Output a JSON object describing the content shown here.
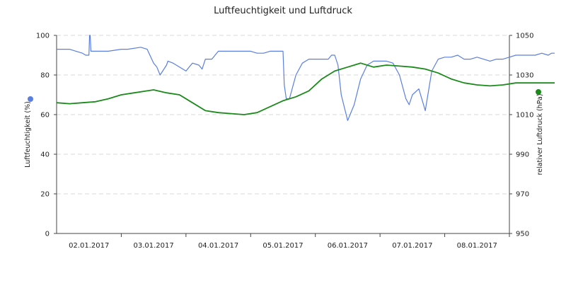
{
  "chart_data": {
    "type": "line",
    "title": "Luftfeuchtigkeit und Luftdruck",
    "y_left": {
      "label": "Luftfeuchtigkeit (%)",
      "lim": [
        0,
        100
      ],
      "ticks": [
        "0",
        "20",
        "40",
        "60",
        "80",
        "100"
      ]
    },
    "y_right": {
      "label": "relativer Luftdruck (hPa)",
      "lim": [
        950,
        1050
      ],
      "ticks": [
        "950",
        "970",
        "990",
        "1010",
        "1030",
        "1050"
      ]
    },
    "x_range": [
      "01.01.2017 00:00",
      "08.01.2017 23:59"
    ],
    "x_ticks": [
      "02.01.2017",
      "03.01.2017",
      "04.01.2017",
      "05.01.2017",
      "06.01.2017",
      "07.01.2017",
      "08.01.2017"
    ],
    "grid": "horizontal dashed",
    "colors": {
      "humidity": "#5b7fe0",
      "pressure": "#1a8a1a",
      "grid": "#d8d8d8",
      "axis": "#444444"
    },
    "series": [
      {
        "axis": "left",
        "x_days": [
          0,
          0.2,
          0.3,
          0.4,
          0.45,
          0.5,
          0.51,
          0.52,
          0.53,
          0.55,
          0.6,
          0.8,
          1.0,
          1.1,
          1.3,
          1.4,
          1.5,
          1.55,
          1.6,
          1.7,
          1.72,
          1.8,
          1.9,
          2.0,
          2.05,
          2.1,
          2.2,
          2.25,
          2.3,
          2.4,
          2.5,
          2.6,
          2.7,
          2.8,
          2.9,
          3.0,
          3.1,
          3.2,
          3.3,
          3.4,
          3.5,
          3.52,
          3.55,
          3.6,
          3.7,
          3.8,
          3.9,
          4.0,
          4.1,
          4.2,
          4.25,
          4.3,
          4.35,
          4.4,
          4.5,
          4.6,
          4.7,
          4.8,
          4.9,
          5.0,
          5.1,
          5.2,
          5.3,
          5.4,
          5.45,
          5.5,
          5.6,
          5.7,
          5.8,
          5.9,
          6.0,
          6.1,
          6.2,
          6.3,
          6.4,
          6.5,
          6.6,
          6.7,
          6.8,
          6.9,
          7.0,
          7.1,
          7.2,
          7.3,
          7.4,
          7.5,
          7.6,
          7.65,
          7.7
        ],
        "values": [
          93,
          93,
          92,
          91,
          90,
          90,
          100,
          100,
          92,
          92,
          92,
          92,
          93,
          93,
          94,
          93,
          86,
          84,
          80,
          85,
          87,
          86,
          84,
          82,
          84,
          86,
          85,
          83,
          88,
          88,
          92,
          92,
          92,
          92,
          92,
          92,
          91,
          91,
          92,
          92,
          92,
          75,
          68,
          68,
          80,
          86,
          88,
          88,
          88,
          88,
          90,
          90,
          85,
          70,
          57,
          65,
          78,
          85,
          87,
          87,
          87,
          86,
          80,
          68,
          65,
          70,
          73,
          62,
          82,
          88,
          89,
          89,
          90,
          88,
          88,
          89,
          88,
          87,
          88,
          88,
          89,
          90,
          90,
          90,
          90,
          91,
          90,
          91,
          91
        ]
      },
      {
        "axis": "right",
        "x_days": [
          0,
          0.2,
          0.4,
          0.6,
          0.8,
          1.0,
          1.2,
          1.4,
          1.5,
          1.7,
          1.9,
          2.1,
          2.3,
          2.5,
          2.7,
          2.9,
          3.1,
          3.3,
          3.5,
          3.7,
          3.9,
          4.1,
          4.3,
          4.5,
          4.6,
          4.7,
          4.9,
          5.1,
          5.3,
          5.5,
          5.7,
          5.9,
          6.1,
          6.3,
          6.5,
          6.7,
          6.9,
          7.1,
          7.3,
          7.5,
          7.7
        ],
        "values": [
          1016,
          1015.5,
          1016,
          1016.5,
          1018,
          1020,
          1021,
          1022,
          1022.5,
          1021,
          1020,
          1016,
          1012,
          1011,
          1010.5,
          1010,
          1011,
          1014,
          1017,
          1019,
          1022,
          1028,
          1032,
          1034,
          1035,
          1036,
          1034,
          1035,
          1034.5,
          1034,
          1033,
          1031,
          1028,
          1026,
          1025,
          1024.5,
          1025,
          1026,
          1026,
          1026,
          1026
        ]
      }
    ]
  }
}
